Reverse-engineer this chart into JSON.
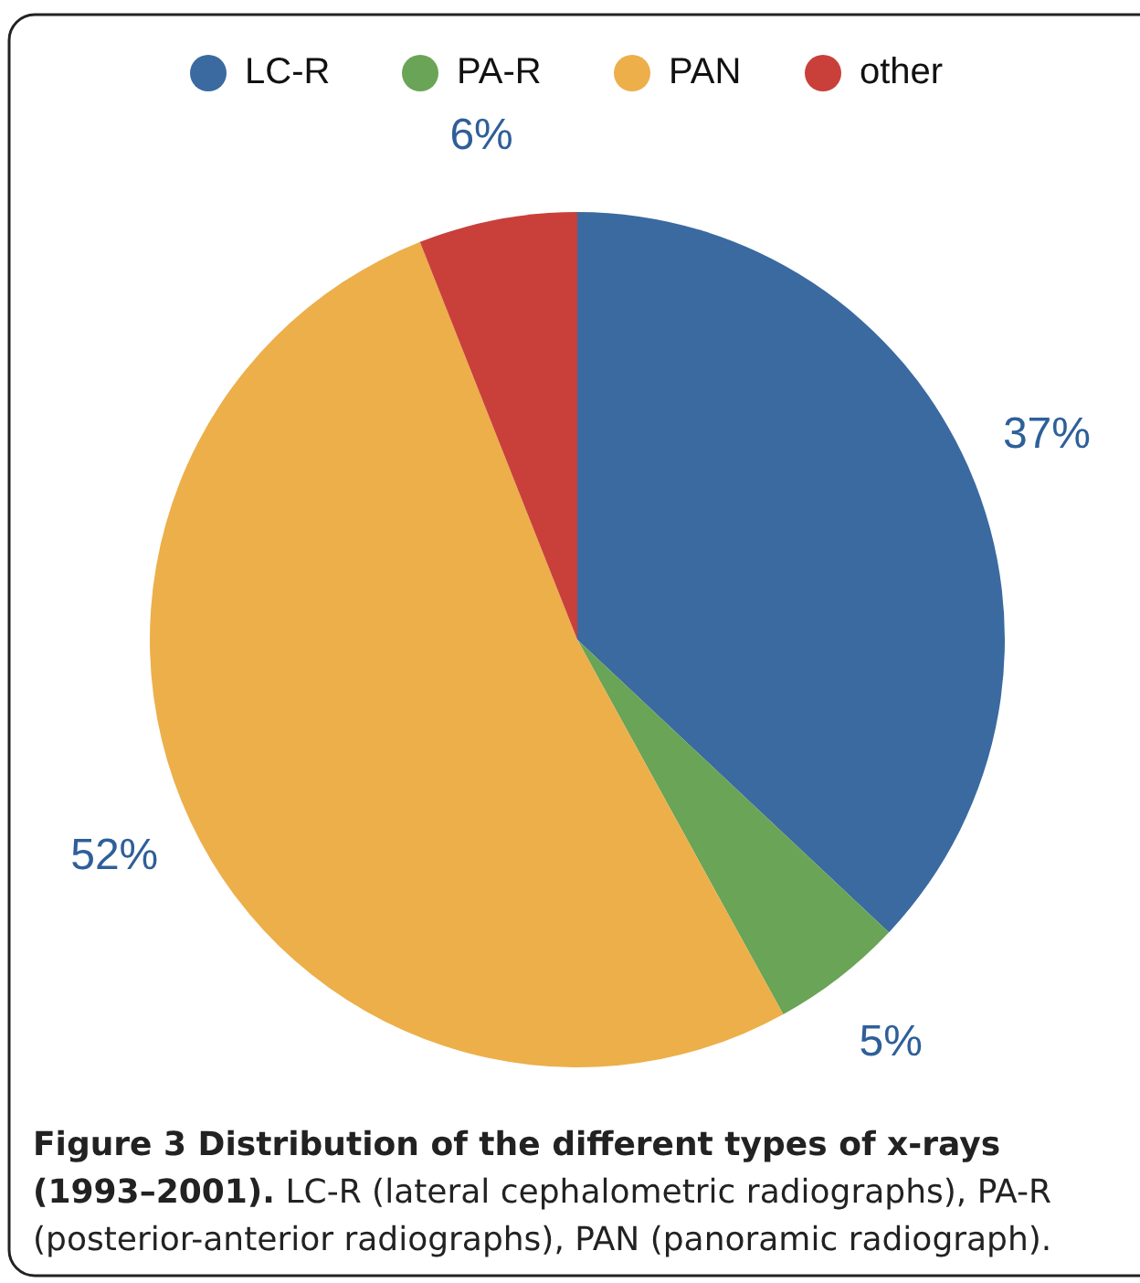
{
  "chart_data": {
    "type": "pie",
    "title": "Figure 3 Distribution of the different types of x-rays (1993–2001).",
    "annotations": [
      "LC-R (lateral cephalometric radiographs), PA-R (posterior-anterior radiographs), PAN (panoramic radiograph)."
    ],
    "categories": [
      "LC-R",
      "PA-R",
      "PAN",
      "other"
    ],
    "values": [
      37,
      5,
      52,
      6
    ],
    "value_labels": [
      "37%",
      "5%",
      "52%",
      "6%"
    ],
    "colors": [
      "#3a6aa0",
      "#6aa456",
      "#ecaf4a",
      "#c9403a"
    ],
    "legend": "top"
  }
}
